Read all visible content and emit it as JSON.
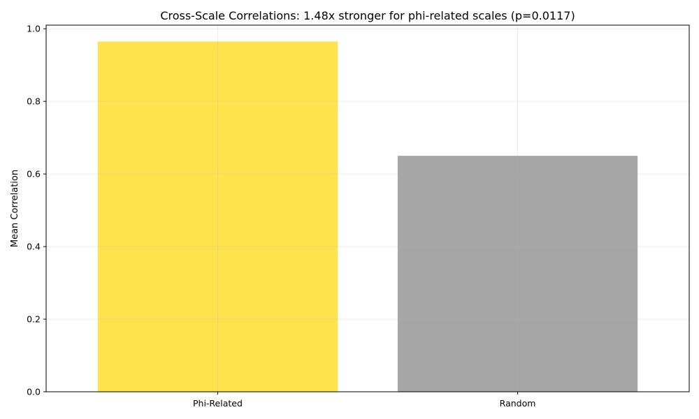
{
  "chart_data": {
    "type": "bar",
    "title": "Cross-Scale Correlations: 1.48x stronger for phi-related scales (p=0.0117)",
    "xlabel": "",
    "ylabel": "Mean Correlation",
    "categories": [
      "Phi-Related",
      "Random"
    ],
    "values": [
      0.965,
      0.65
    ],
    "bar_colors": [
      "#FFD700",
      "#808080"
    ],
    "bar_opacity": 0.7,
    "ylim": [
      0,
      1.01
    ],
    "yticks": [
      0.0,
      0.2,
      0.4,
      0.6,
      0.8,
      1.0
    ],
    "ytick_labels": [
      "0.0",
      "0.2",
      "0.4",
      "0.6",
      "0.8",
      "1.0"
    ],
    "grid": true,
    "grid_color": "#e6e6e6"
  }
}
